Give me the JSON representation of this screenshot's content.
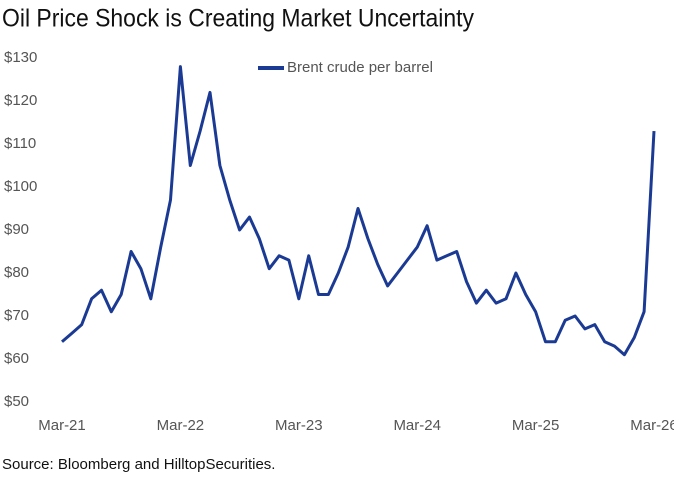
{
  "chart_data": {
    "type": "line",
    "title": "Oil Price Shock is Creating Market Uncertainty",
    "source": "Source: Bloomberg and HilltopSecurities.",
    "x": [
      "2021-03",
      "2021-04",
      "2021-05",
      "2021-06",
      "2021-07",
      "2021-08",
      "2021-09",
      "2021-10",
      "2021-11",
      "2021-12",
      "2022-01",
      "2022-02",
      "2022-03",
      "2022-04",
      "2022-05",
      "2022-06",
      "2022-07",
      "2022-08",
      "2022-09",
      "2022-10",
      "2022-11",
      "2022-12",
      "2023-01",
      "2023-02",
      "2023-03",
      "2023-04",
      "2023-05",
      "2023-06",
      "2023-07",
      "2023-08",
      "2023-09",
      "2023-10",
      "2023-11",
      "2023-12",
      "2024-01",
      "2024-02",
      "2024-03",
      "2024-04",
      "2024-05",
      "2024-06",
      "2024-07",
      "2024-08",
      "2024-09",
      "2024-10",
      "2024-11",
      "2024-12",
      "2025-01",
      "2025-02",
      "2025-03",
      "2025-04",
      "2025-05",
      "2025-06",
      "2025-07",
      "2025-08",
      "2025-09",
      "2025-10",
      "2025-11",
      "2025-12",
      "2026-01",
      "2026-02",
      "2026-03"
    ],
    "series": [
      {
        "name": "Brent crude per barrel",
        "color": "#1b3a93",
        "values": [
          64,
          66,
          68,
          74,
          76,
          71,
          75,
          85,
          81,
          74,
          86,
          97,
          128,
          105,
          113,
          122,
          105,
          97,
          90,
          93,
          88,
          81,
          84,
          83,
          74,
          84,
          75,
          75,
          80,
          86,
          95,
          88,
          82,
          77,
          80,
          83,
          86,
          91,
          83,
          84,
          85,
          78,
          73,
          76,
          73,
          74,
          80,
          75,
          71,
          64,
          64,
          69,
          70,
          67,
          68,
          64,
          63,
          61,
          65,
          71,
          113
        ]
      }
    ],
    "xticks": [
      {
        "value": "2021-03",
        "label": "Mar-21"
      },
      {
        "value": "2022-03",
        "label": "Mar-22"
      },
      {
        "value": "2023-03",
        "label": "Mar-23"
      },
      {
        "value": "2024-03",
        "label": "Mar-24"
      },
      {
        "value": "2025-03",
        "label": "Mar-25"
      },
      {
        "value": "2026-03",
        "label": "Mar-26"
      }
    ],
    "xlim": [
      "2021-03",
      "2026-03"
    ],
    "ylim": [
      50,
      130
    ],
    "yticks": [
      {
        "value": 50,
        "label": "$50"
      },
      {
        "value": 60,
        "label": "$60"
      },
      {
        "value": 70,
        "label": "$70"
      },
      {
        "value": 80,
        "label": "$80"
      },
      {
        "value": 90,
        "label": "$90"
      },
      {
        "value": 100,
        "label": "$100"
      },
      {
        "value": 110,
        "label": "$110"
      },
      {
        "value": 120,
        "label": "$120"
      },
      {
        "value": 130,
        "label": "$130"
      }
    ]
  }
}
